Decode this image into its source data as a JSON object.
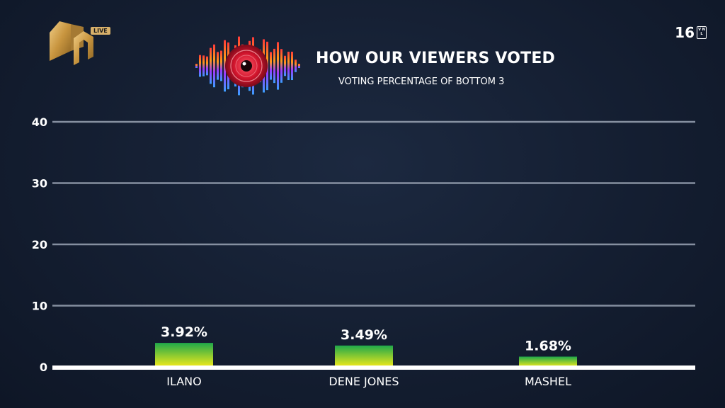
{
  "broadcast": {
    "channel_badge": "LIVE",
    "age_rating": "16",
    "age_rating_codes": "V N L"
  },
  "header": {
    "title": "HOW OUR VIEWERS VOTED",
    "subtitle": "VOTING PERCENTAGE OF BOTTOM 3"
  },
  "chart_data": {
    "type": "bar",
    "title": "HOW OUR VIEWERS VOTED",
    "subtitle": "VOTING PERCENTAGE OF BOTTOM 3",
    "categories": [
      "ILANO",
      "DENE JONES",
      "MASHEL"
    ],
    "values": [
      3.92,
      3.49,
      1.68
    ],
    "value_labels": [
      "3.92%",
      "3.49%",
      "1.68%"
    ],
    "yticks": [
      "0",
      "10",
      "20",
      "30",
      "40"
    ],
    "ylim": [
      0,
      40
    ],
    "grid": true,
    "colors": {
      "bar_top": "#1fa84a",
      "bar_bottom": "#f2ea1a",
      "grid": "#9aa4b4",
      "baseline": "#ffffff"
    }
  }
}
